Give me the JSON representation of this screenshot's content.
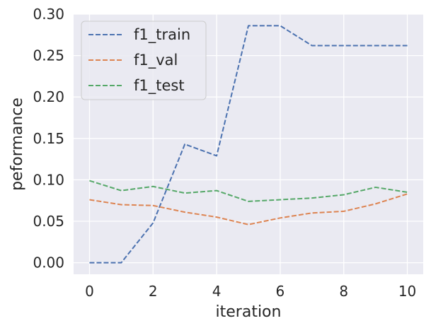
{
  "chart_data": {
    "type": "line",
    "xlabel": "iteration",
    "ylabel": "peformance",
    "xlim": [
      -0.5,
      10.5
    ],
    "ylim": [
      -0.014,
      0.3
    ],
    "xticks": [
      0,
      2,
      4,
      6,
      8,
      10
    ],
    "yticks": [
      0.0,
      0.05,
      0.1,
      0.15,
      0.2,
      0.25,
      0.3
    ],
    "ytick_labels": [
      "0.00",
      "0.05",
      "0.10",
      "0.15",
      "0.20",
      "0.25",
      "0.30"
    ],
    "grid": true,
    "legend_position": "top-left",
    "x": [
      0,
      1,
      2,
      3,
      4,
      5,
      6,
      7,
      8,
      9,
      10
    ],
    "series": [
      {
        "name": "f1_train",
        "color": "#4c72b0",
        "style": "dashed",
        "values": [
          0.0,
          0.0,
          0.048,
          0.143,
          0.129,
          0.286,
          0.286,
          0.262,
          0.262,
          0.262,
          0.262
        ]
      },
      {
        "name": "f1_val",
        "color": "#dd8452",
        "style": "dashed",
        "values": [
          0.076,
          0.07,
          0.069,
          0.061,
          0.055,
          0.046,
          0.054,
          0.06,
          0.062,
          0.071,
          0.083
        ]
      },
      {
        "name": "f1_test",
        "color": "#55a868",
        "style": "dashed",
        "values": [
          0.099,
          0.087,
          0.092,
          0.084,
          0.087,
          0.074,
          0.076,
          0.078,
          0.082,
          0.091,
          0.085
        ]
      }
    ]
  },
  "colors": {
    "plot_background": "#eaeaf2",
    "grid": "#ffffff"
  }
}
